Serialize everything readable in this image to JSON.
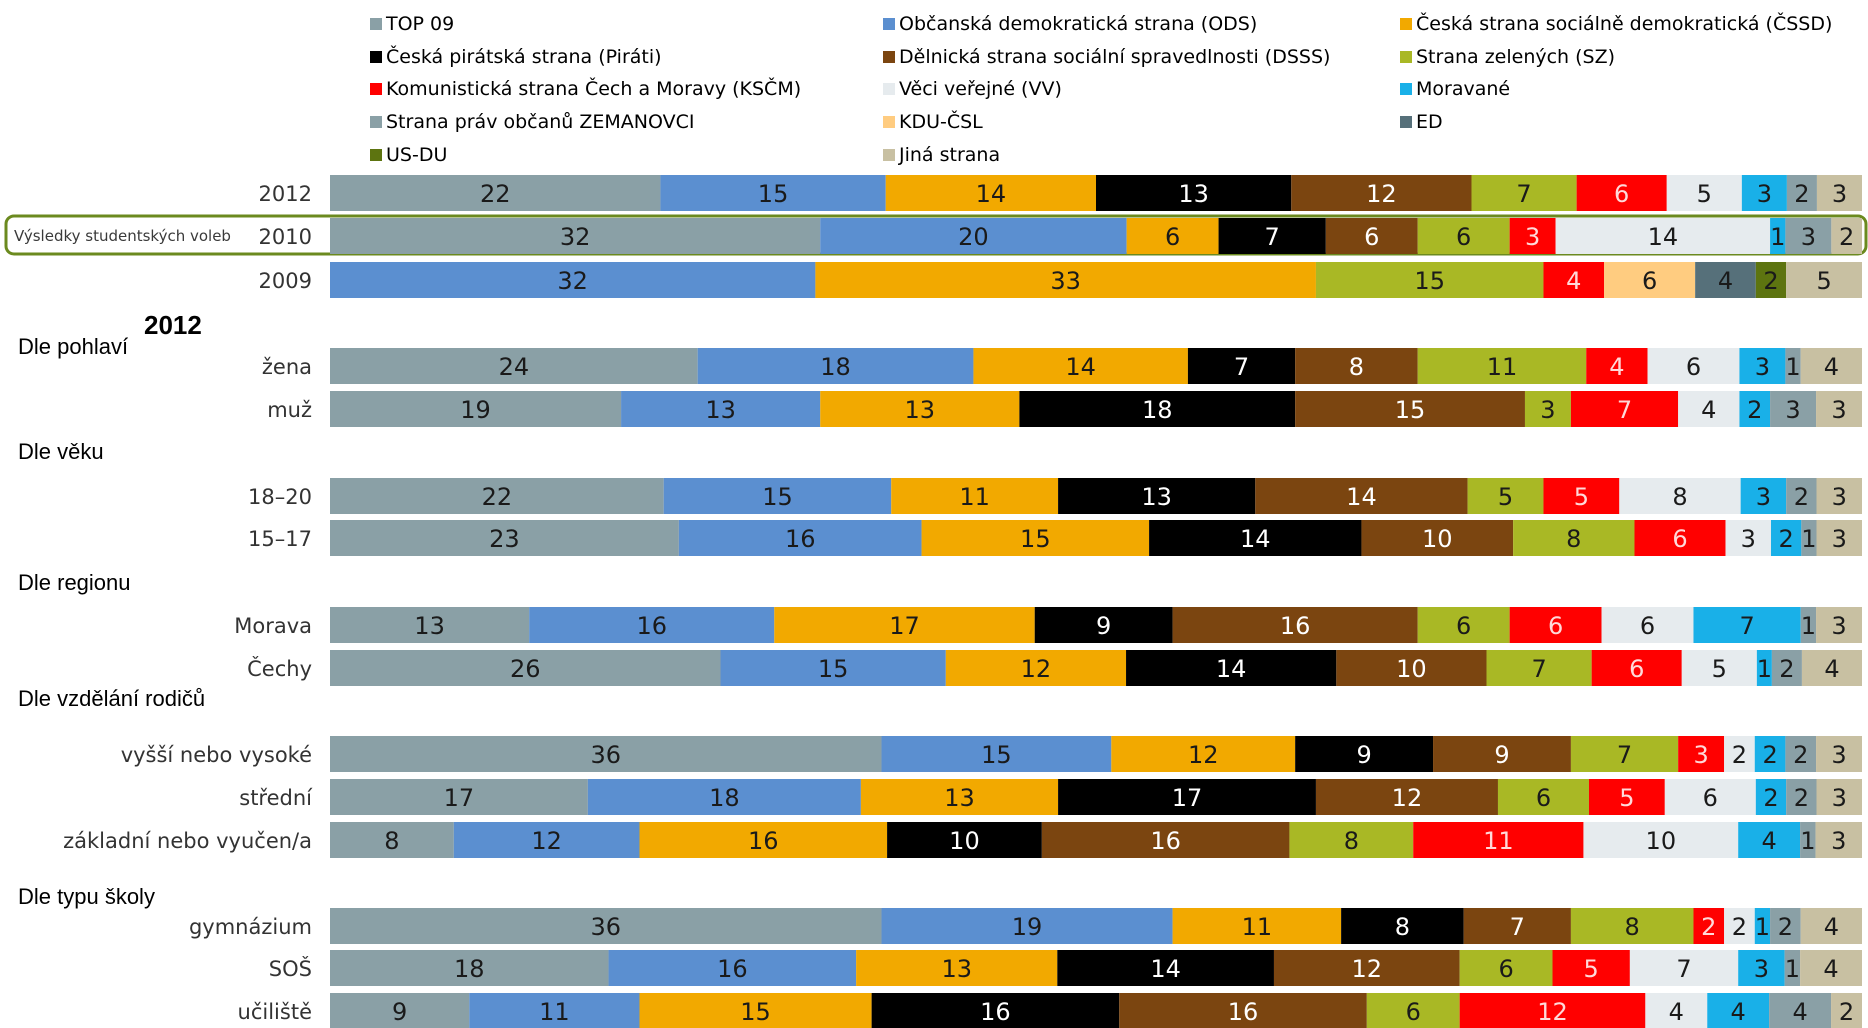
{
  "chart_data": {
    "type": "bar",
    "orientation": "horizontal-stacked-percent",
    "parties": [
      {
        "name": "TOP 09",
        "color": "#8aa0a6"
      },
      {
        "name": "Občanská demokratická strana (ODS)",
        "color": "#5b8fd0"
      },
      {
        "name": "Česká strana sociálně demokratická (ČSSD)",
        "color": "#f2a900"
      },
      {
        "name": "Česká pirátská strana (Piráti)",
        "color": "#000000"
      },
      {
        "name": "Dělnická strana sociální spravedlnosti (DSSS)",
        "color": "#7b4510"
      },
      {
        "name": "Strana zelených (SZ)",
        "color": "#a9b825"
      },
      {
        "name": "Komunistická strana Čech a Moravy (KSČM)",
        "color": "#ff0000"
      },
      {
        "name": "Věci veřejné (VV)",
        "color": "#e6ebee"
      },
      {
        "name": "Moravané",
        "color": "#19b0e8"
      },
      {
        "name": "Strana práv občanů ZEMANOVCI",
        "color": "#8aa0a6"
      },
      {
        "name": "KDU-ČSL",
        "color": "#ffcc80"
      },
      {
        "name": "ED",
        "color": "#56707a"
      },
      {
        "name": "US-DU",
        "color": "#5d7410"
      },
      {
        "name": "Jiná strana",
        "color": "#c8c0a2"
      }
    ],
    "highlight_label": "Výsledky studentských voleb",
    "year_heading": "2012",
    "sections": [
      "Dle pohlaví",
      "Dle věku",
      "Dle regionu",
      "Dle vzdělání rodičů",
      "Dle typu školy"
    ],
    "rows": [
      {
        "label": "2012",
        "values": [
          22,
          15,
          14,
          13,
          12,
          7,
          6,
          5,
          3,
          2,
          0,
          0,
          0,
          3
        ]
      },
      {
        "label": "2010",
        "values": [
          32,
          20,
          6,
          7,
          6,
          6,
          3,
          14,
          1,
          3,
          0,
          0,
          0,
          2
        ]
      },
      {
        "label": "2009",
        "values": [
          0,
          32,
          33,
          0,
          0,
          15,
          4,
          0,
          0,
          0,
          6,
          4,
          2,
          5
        ]
      },
      {
        "label": "žena",
        "values": [
          24,
          18,
          14,
          7,
          8,
          11,
          4,
          6,
          3,
          1,
          0,
          0,
          0,
          4
        ]
      },
      {
        "label": "muž",
        "values": [
          19,
          13,
          13,
          18,
          15,
          3,
          7,
          4,
          2,
          3,
          0,
          0,
          0,
          3
        ]
      },
      {
        "label": "18–20",
        "values": [
          22,
          15,
          11,
          13,
          14,
          5,
          5,
          8,
          3,
          2,
          0,
          0,
          0,
          3
        ]
      },
      {
        "label": "15–17",
        "values": [
          23,
          16,
          15,
          14,
          10,
          8,
          6,
          3,
          2,
          1,
          0,
          0,
          0,
          3
        ]
      },
      {
        "label": "Morava",
        "values": [
          13,
          16,
          17,
          9,
          16,
          6,
          6,
          6,
          7,
          1,
          0,
          0,
          0,
          3
        ]
      },
      {
        "label": "Čechy",
        "values": [
          26,
          15,
          12,
          14,
          10,
          7,
          6,
          5,
          1,
          2,
          0,
          0,
          0,
          4
        ]
      },
      {
        "label": "vyšší nebo vysoké",
        "values": [
          36,
          15,
          12,
          9,
          9,
          7,
          3,
          2,
          2,
          2,
          0,
          0,
          0,
          3
        ]
      },
      {
        "label": "střední",
        "values": [
          17,
          18,
          13,
          17,
          12,
          6,
          5,
          6,
          2,
          2,
          0,
          0,
          0,
          3
        ]
      },
      {
        "label": "základní nebo vyučen/a",
        "values": [
          8,
          12,
          16,
          10,
          16,
          8,
          11,
          10,
          4,
          1,
          0,
          0,
          0,
          3
        ]
      },
      {
        "label": "gymnázium",
        "values": [
          36,
          19,
          11,
          8,
          7,
          8,
          2,
          2,
          1,
          2,
          0,
          0,
          0,
          4
        ]
      },
      {
        "label": "SOŠ",
        "values": [
          18,
          16,
          13,
          14,
          12,
          6,
          5,
          7,
          3,
          1,
          0,
          0,
          0,
          4
        ]
      },
      {
        "label": "učiliště",
        "values": [
          9,
          11,
          15,
          16,
          16,
          6,
          12,
          4,
          4,
          4,
          0,
          0,
          0,
          2
        ]
      }
    ]
  }
}
